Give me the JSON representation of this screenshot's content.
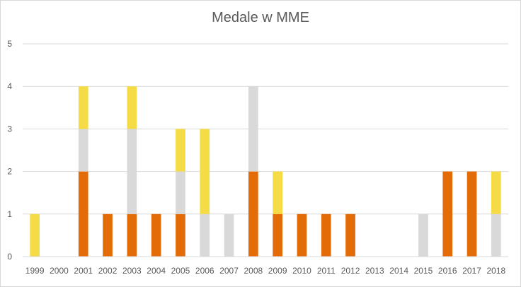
{
  "chart_data": {
    "type": "bar",
    "stacked": true,
    "title": "Medale w MME",
    "xlabel": "",
    "ylabel": "",
    "ylim": [
      0,
      5
    ],
    "yticks": [
      0,
      1,
      2,
      3,
      4,
      5
    ],
    "grid": true,
    "legend": "none",
    "categories": [
      "1999",
      "2000",
      "2001",
      "2002",
      "2003",
      "2004",
      "2005",
      "2006",
      "2007",
      "2008",
      "2009",
      "2010",
      "2011",
      "2012",
      "2013",
      "2014",
      "2015",
      "2016",
      "2017",
      "2018"
    ],
    "series": [
      {
        "color": "#e36c09",
        "values": [
          0,
          0,
          2,
          1,
          1,
          1,
          1,
          0,
          0,
          2,
          1,
          1,
          1,
          1,
          0,
          0,
          0,
          2,
          2,
          0
        ]
      },
      {
        "color": "#d9d9d9",
        "values": [
          0,
          0,
          1,
          0,
          2,
          0,
          1,
          1,
          1,
          2,
          0,
          0,
          0,
          0,
          0,
          0,
          1,
          0,
          0,
          1
        ]
      },
      {
        "color": "#f5dc46",
        "values": [
          1,
          0,
          1,
          0,
          1,
          0,
          1,
          2,
          0,
          0,
          1,
          0,
          0,
          0,
          0,
          0,
          0,
          0,
          0,
          1
        ]
      }
    ]
  }
}
